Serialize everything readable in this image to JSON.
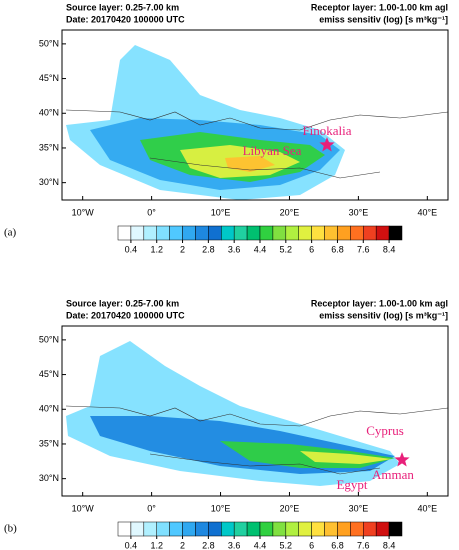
{
  "panels": [
    {
      "label": "(a)",
      "source_layer": "Source layer: 0.25-7.00 km",
      "date": "Date: 20170420 100000 UTC",
      "receptor_layer": "Receptor layer: 1.00-1.00 km agl",
      "units": "emiss sensitiv (log) [s m³kg⁻¹]",
      "annotations": [
        "Finokalia",
        "Libyan Sea"
      ]
    },
    {
      "label": "(b)",
      "source_layer": "Source layer: 0.25-7.00 km",
      "date": "Date: 20170420 100000 UTC",
      "receptor_layer": "Receptor layer: 1.00-1.00 km agl",
      "units": "emiss sensitiv (log) [s m³kg⁻¹]",
      "annotations": [
        "Cyprus",
        "Egypt",
        "Amman"
      ]
    }
  ],
  "xlim": [
    -13,
    43
  ],
  "ylim": [
    27.5,
    52
  ],
  "xticks": [
    {
      "value": -10,
      "label": "10°W"
    },
    {
      "value": 0,
      "label": "0°"
    },
    {
      "value": 10,
      "label": "10°E"
    },
    {
      "value": 20,
      "label": "20°E"
    },
    {
      "value": 30,
      "label": "30°E"
    },
    {
      "value": 40,
      "label": "40°E"
    }
  ],
  "yticks": [
    {
      "value": 30,
      "label": "30°N"
    },
    {
      "value": 35,
      "label": "35°N"
    },
    {
      "value": 40,
      "label": "40°N"
    },
    {
      "value": 45,
      "label": "45°N"
    },
    {
      "value": 50,
      "label": "50°N"
    }
  ],
  "colorbar": {
    "lim": [
      0,
      8.8
    ],
    "ticks": [
      0.4,
      1.2,
      2,
      2.8,
      3.6,
      4.4,
      5.2,
      6,
      6.8,
      7.6,
      8.4
    ],
    "colors": [
      "#ffffff",
      "#e0f8ff",
      "#b0f0ff",
      "#80e0ff",
      "#50c8ff",
      "#30a8f0",
      "#1e88e0",
      "#1070d0",
      "#00c8c8",
      "#20d0a0",
      "#00c070",
      "#30d040",
      "#80e040",
      "#b0f040",
      "#e0f040",
      "#ffe040",
      "#ffc030",
      "#ffa020",
      "#ff7020",
      "#f04020",
      "#d01010",
      "#000000"
    ]
  }
}
